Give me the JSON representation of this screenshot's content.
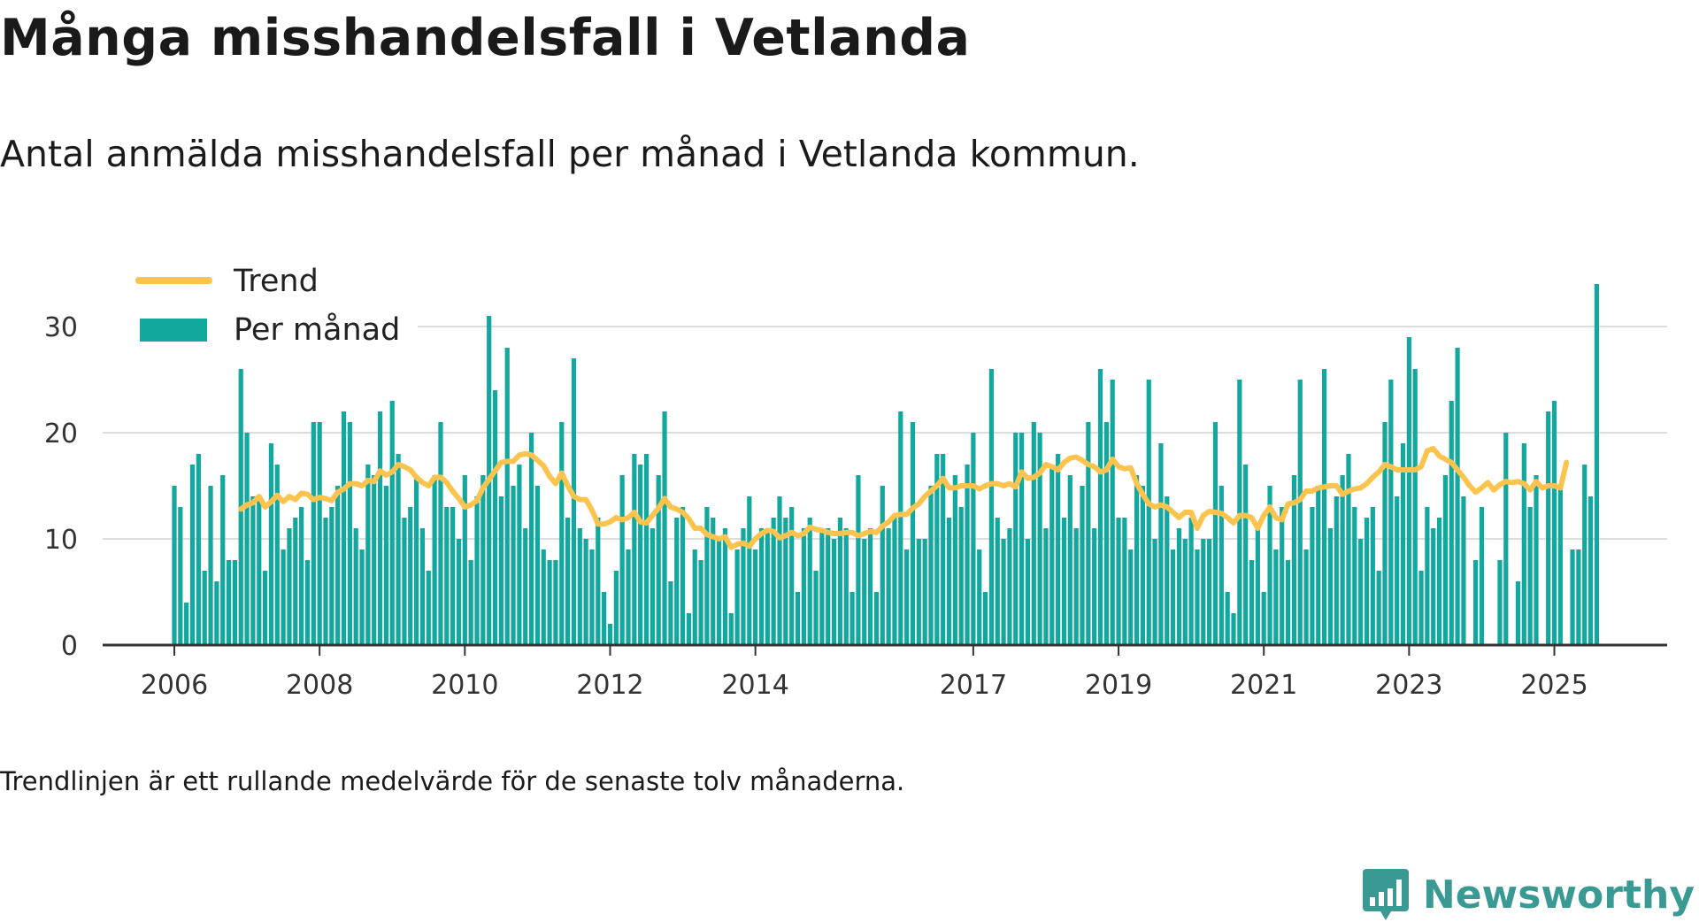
{
  "title": "Många misshandelsfall i Vetlanda",
  "subtitle": "Antal anmälda misshandelsfall per månad i Vetlanda kommun.",
  "note": "Trendlinjen är ett rullande medelvärde för de senaste tolv månaderna.",
  "brand": {
    "name": "Newsworthy",
    "logo_icon": "bar-chart-badge-icon"
  },
  "colors": {
    "bars": "#13a89e",
    "trend": "#fcc44e",
    "grid": "#dddddd",
    "axis": "#333333",
    "brand": "#3a9a93"
  },
  "chart_data": {
    "type": "bar",
    "ylim": [
      0,
      35
    ],
    "yticks": [
      0,
      10,
      20,
      30
    ],
    "xtick_labels": [
      "2006",
      "2008",
      "2010",
      "2012",
      "2014",
      "2017",
      "2019",
      "2021",
      "2023",
      "2025"
    ],
    "grid": "horizontal",
    "legend_position": "top-left",
    "series": [
      {
        "name": "Per månad",
        "type": "bar",
        "start": "2006-01",
        "values": [
          15,
          13,
          4,
          17,
          18,
          7,
          15,
          6,
          16,
          8,
          8,
          26,
          20,
          14,
          14,
          7,
          19,
          17,
          9,
          11,
          12,
          13,
          8,
          21,
          21,
          12,
          13,
          15,
          22,
          21,
          11,
          9,
          17,
          16,
          22,
          15,
          23,
          18,
          12,
          13,
          16,
          11,
          7,
          16,
          21,
          13,
          13,
          10,
          16,
          8,
          14,
          16,
          31,
          24,
          14,
          28,
          15,
          17,
          11,
          20,
          15,
          9,
          8,
          8,
          21,
          12,
          27,
          11,
          10,
          9,
          12,
          5,
          2,
          7,
          16,
          9,
          18,
          17,
          18,
          11,
          16,
          22,
          6,
          12,
          13,
          3,
          9,
          8,
          13,
          12,
          10,
          11,
          3,
          9,
          11,
          14,
          9,
          11,
          11,
          12,
          14,
          12,
          13,
          5,
          11,
          12,
          7,
          11,
          11,
          10,
          12,
          11,
          5,
          16,
          10,
          11,
          5,
          15,
          11,
          12,
          22,
          9,
          21,
          10,
          10,
          15,
          18,
          18,
          12,
          16,
          13,
          17,
          20,
          9,
          5,
          26,
          12,
          10,
          11,
          20,
          20,
          10,
          21,
          20,
          11,
          17,
          18,
          12,
          16,
          11,
          15,
          21,
          11,
          26,
          21,
          25,
          12,
          12,
          9,
          16,
          15,
          25,
          10,
          19,
          14,
          9,
          11,
          10,
          12,
          9,
          10,
          10,
          21,
          15,
          5,
          3,
          25,
          17,
          8,
          11,
          5,
          15,
          9,
          13,
          8,
          16,
          25,
          9,
          13,
          15,
          26,
          11,
          14,
          16,
          18,
          13,
          10,
          12,
          13,
          7,
          21,
          25,
          14,
          19,
          29,
          26,
          7,
          13,
          11,
          12,
          16,
          23,
          28,
          14,
          0,
          8,
          13,
          0,
          0,
          8,
          20,
          0,
          6,
          19,
          13,
          16,
          0,
          22,
          23,
          15,
          0,
          9,
          9,
          17,
          14,
          34
        ]
      },
      {
        "name": "Trend",
        "type": "line",
        "start": "2006-12",
        "values": [
          12.8,
          13.2,
          13.4,
          14.0,
          13.0,
          13.5,
          14.1,
          13.5,
          14.0,
          13.7,
          14.3,
          14.2,
          13.7,
          13.9,
          13.8,
          13.6,
          14.4,
          14.7,
          15.2,
          15.2,
          15.0,
          15.5,
          15.4,
          16.4,
          16.0,
          16.3,
          17.0,
          16.8,
          16.5,
          15.8,
          15.3,
          15.0,
          15.8,
          15.8,
          15.3,
          14.5,
          13.8,
          13.0,
          13.2,
          13.6,
          14.8,
          15.6,
          16.4,
          17.2,
          17.3,
          17.3,
          17.9,
          18.0,
          17.9,
          17.4,
          16.9,
          15.9,
          15.2,
          16.2,
          15.0,
          14.0,
          13.7,
          13.7,
          12.7,
          11.4,
          11.4,
          11.6,
          12.0,
          11.8,
          12.0,
          12.5,
          11.6,
          11.5,
          12.2,
          12.9,
          13.8,
          13.0,
          12.8,
          12.5,
          11.9,
          11.0,
          11.0,
          10.4,
          10.2,
          10.0,
          10.2,
          9.2,
          9.5,
          9.6,
          9.3,
          10.0,
          10.5,
          10.8,
          10.7,
          10.1,
          10.3,
          10.6,
          10.3,
          10.5,
          11.1,
          10.9,
          10.8,
          10.6,
          10.5,
          10.5,
          10.6,
          10.6,
          10.3,
          10.5,
          10.7,
          10.6,
          11.2,
          11.6,
          12.2,
          12.3,
          12.3,
          12.9,
          13.3,
          14.0,
          14.5,
          15.0,
          15.7,
          14.8,
          14.8,
          15.0,
          15.0,
          15.0,
          14.7,
          15.0,
          15.2,
          15.2,
          15.0,
          15.2,
          14.9,
          16.3,
          15.7,
          15.8,
          16.2,
          17.0,
          16.8,
          16.5,
          17.2,
          17.6,
          17.7,
          17.4,
          17.0,
          16.8,
          16.3,
          16.5,
          17.5,
          16.8,
          16.6,
          16.7,
          15.2,
          14.2,
          13.3,
          13.0,
          13.2,
          13.0,
          12.5,
          12.0,
          12.5,
          12.5,
          11.0,
          12.2,
          12.6,
          12.5,
          12.4,
          12.0,
          11.5,
          12.2,
          12.2,
          12.0,
          11.0,
          12.2,
          13.0,
          12.0,
          11.8,
          13.3,
          13.4,
          13.7,
          14.5,
          14.5,
          14.8,
          14.9,
          15.0,
          15.0,
          14.2,
          14.5,
          14.7,
          14.8,
          15.2,
          15.8,
          16.3,
          17.0,
          16.8,
          16.5,
          16.5,
          16.5,
          16.5,
          16.8,
          18.3,
          18.5,
          17.8,
          17.5,
          17.2,
          16.5,
          15.8,
          15.0,
          14.4,
          14.8,
          15.3,
          14.6,
          15.1,
          15.4,
          15.3,
          15.4,
          15.2,
          14.6,
          15.4,
          14.8,
          15.0,
          15.0,
          14.8,
          17.2
        ]
      }
    ]
  }
}
